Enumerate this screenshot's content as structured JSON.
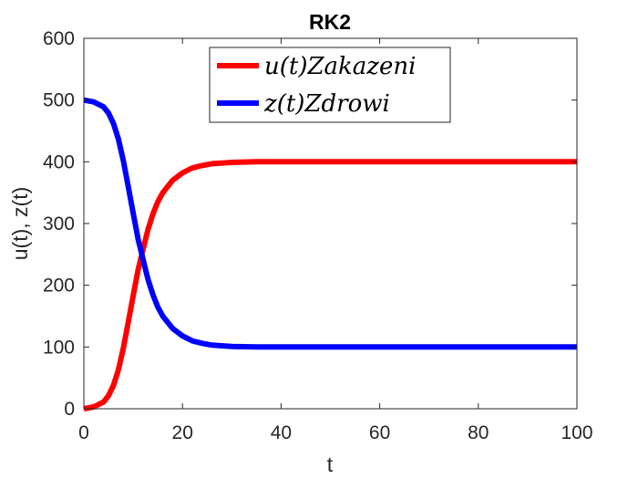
{
  "chart_data": {
    "type": "line",
    "title": "RK2",
    "xlabel": "t",
    "ylabel": "u(t), z(t)",
    "xlim": [
      0,
      100
    ],
    "ylim": [
      0,
      600
    ],
    "xticks": [
      0,
      20,
      40,
      60,
      80,
      100
    ],
    "yticks": [
      0,
      100,
      200,
      300,
      400,
      500,
      600
    ],
    "grid": false,
    "legend_position": "top-right",
    "series": [
      {
        "name": "u(t)Zakazeni",
        "color": "#ff0000",
        "x": [
          0,
          2,
          4,
          5,
          6,
          7,
          8,
          9,
          10,
          11,
          12,
          13,
          14,
          15,
          16,
          18,
          20,
          22,
          24,
          26,
          28,
          30,
          35,
          40,
          50,
          60,
          70,
          80,
          90,
          100
        ],
        "y": [
          0,
          3,
          11,
          21,
          38,
          63,
          98,
          140,
          183,
          225,
          258,
          290,
          315,
          335,
          350,
          370,
          382,
          390,
          394,
          397,
          398,
          399,
          400,
          400,
          400,
          400,
          400,
          400,
          400,
          400
        ]
      },
      {
        "name": "z(t)Zdrowi",
        "color": "#0000ff",
        "x": [
          0,
          2,
          4,
          5,
          6,
          7,
          8,
          9,
          10,
          11,
          12,
          13,
          14,
          15,
          16,
          18,
          20,
          22,
          24,
          26,
          28,
          30,
          35,
          40,
          50,
          60,
          70,
          80,
          90,
          100
        ],
        "y": [
          500,
          497,
          489,
          479,
          462,
          437,
          402,
          360,
          317,
          275,
          242,
          210,
          185,
          165,
          150,
          130,
          118,
          110,
          106,
          103,
          102,
          101,
          100,
          100,
          100,
          100,
          100,
          100,
          100,
          100
        ]
      }
    ]
  }
}
